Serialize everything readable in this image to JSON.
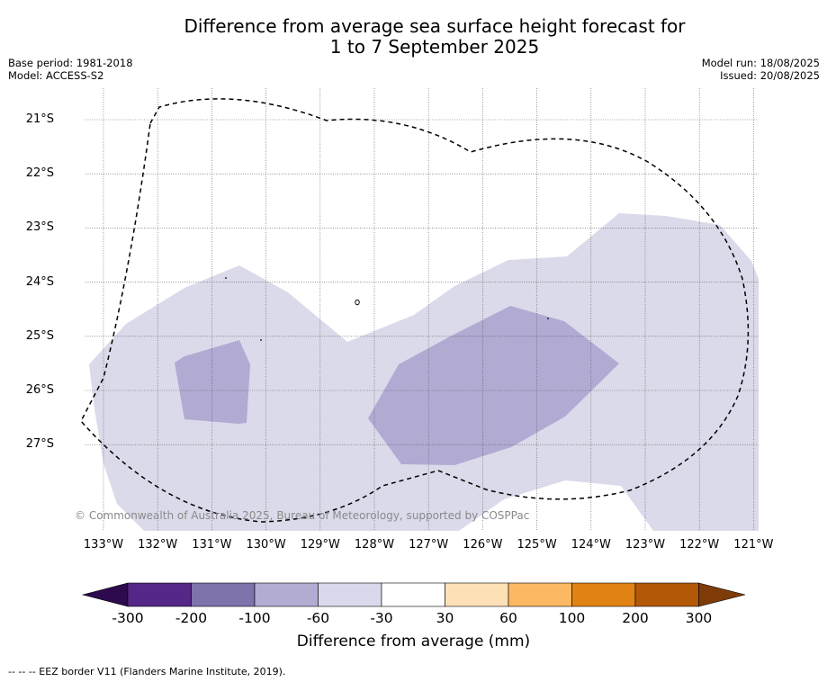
{
  "header": {
    "title_line1": "Difference from average sea surface height forecast for",
    "title_line2": "1 to 7 September 2025",
    "base_period": "Base period: 1981-2018",
    "model": "Model: ACCESS-S2",
    "model_run": "Model run: 18/08/2025",
    "issued": "Issued: 20/08/2025"
  },
  "map": {
    "lon_range": [
      -133.4,
      -120.85
    ],
    "lat_range": [
      -28.6,
      -20.4
    ],
    "lon_labels": [
      "133°W",
      "132°W",
      "131°W",
      "130°W",
      "129°W",
      "128°W",
      "127°W",
      "126°W",
      "125°W",
      "124°W",
      "123°W",
      "122°W",
      "121°W"
    ],
    "lat_labels": [
      "21°S",
      "22°S",
      "23°S",
      "24°S",
      "25°S",
      "26°S",
      "27°S"
    ],
    "lon_ticks": [
      -133,
      -132,
      -131,
      -130,
      -129,
      -128,
      -127,
      -126,
      -125,
      -124,
      -123,
      -122,
      -121
    ],
    "lat_ticks": [
      -21,
      -22,
      -23,
      -24,
      -25,
      -26,
      -27
    ],
    "grid": true,
    "shaded_regions": [
      {
        "class": "-60 to -30",
        "color": "#dadaea"
      },
      {
        "class": "-100 to -60",
        "color": "#b1aad2"
      }
    ],
    "copyright": "© Commonwealth of Australia 2025, Bureau of Meteorology, supported by COSPPac"
  },
  "colorbar": {
    "label": "Difference from average (mm)",
    "ticks": [
      "-300",
      "-200",
      "-100",
      "-60",
      "-30",
      "30",
      "60",
      "100",
      "200",
      "300"
    ],
    "under_color": "#2d0a4e",
    "over_color": "#7f3b08",
    "colors": [
      "#542788",
      "#8073ac",
      "#b2abd2",
      "#d8daeb",
      "#ffffff",
      "#fee0b6",
      "#fdb863",
      "#e08214",
      "#b35806"
    ]
  },
  "footer": "--  --  -- EEZ border V11 (Flanders Marine Institute, 2019)."
}
